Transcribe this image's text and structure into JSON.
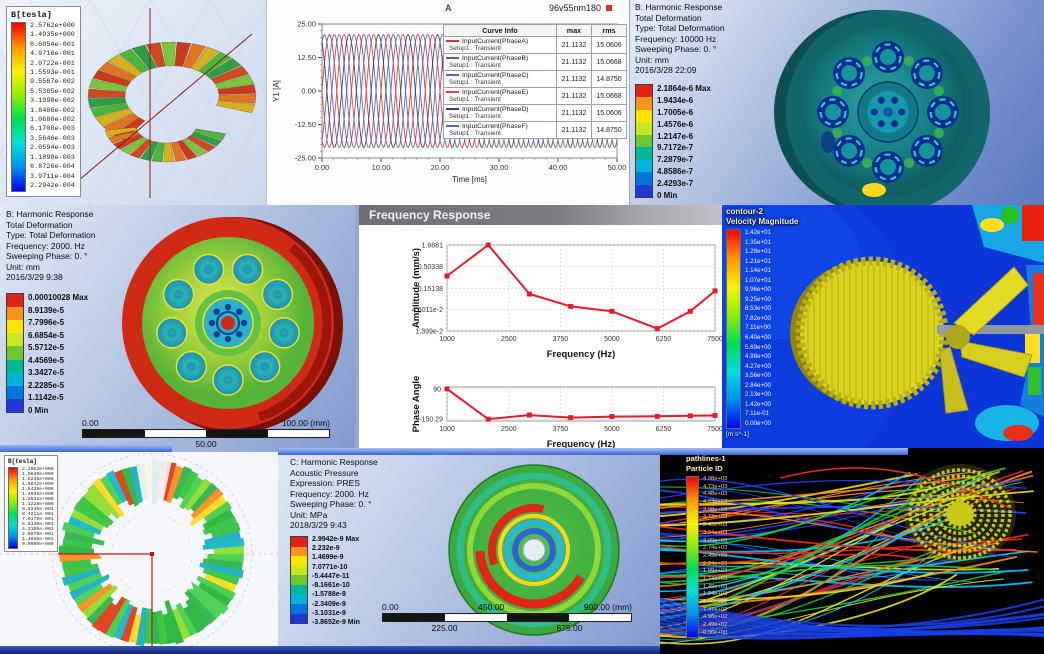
{
  "palette": {
    "ansys_bands": [
      "#e32117",
      "#f7941d",
      "#ffe500",
      "#c8e824",
      "#6cc832",
      "#00b894",
      "#00b4d8",
      "#0077d8",
      "#2038d8"
    ],
    "rainbow_stops": [
      "#ff0000",
      "#ff9500",
      "#fff000",
      "#8cf000",
      "#00e050",
      "#00e0d8",
      "#0090f0",
      "#0000f0"
    ],
    "stream_colors": [
      "#2040ff",
      "#00c8ff",
      "#28c828",
      "#e8e820",
      "#ff8c1a",
      "#ff2818"
    ]
  },
  "panels": {
    "flux3d": {
      "legend_title": "B[tesla]",
      "levels": [
        "2.5762e+000",
        "1.4935e+000",
        "8.6054e-001",
        "4.9716e-001",
        "2.0722e-001",
        "1.5593e-001",
        "9.5567e-002",
        "5.5385e-002",
        "3.1998e-002",
        "1.8486e-002",
        "1.0680e-002",
        "6.1708e-003",
        "3.5646e-003",
        "2.0594e-003",
        "1.1898e-003",
        "6.8726e-004",
        "3.9711e-004",
        "2.2942e-004"
      ]
    },
    "currents": {
      "title_left": "A",
      "title_right": "96v55nm180",
      "legend_headers": [
        "Curve Info",
        "max",
        "rms"
      ],
      "legend_rows": [
        {
          "name": "InputCurrent(PhaseA)",
          "setup": "Setup1 : Transient",
          "max": "21.1132",
          "rms": "15.0606",
          "color": "#cc3333"
        },
        {
          "name": "InputCurrent(PhaseB)",
          "setup": "Setup1 : Transient",
          "max": "21.1132",
          "rms": "15.0668",
          "color": "#606080"
        },
        {
          "name": "InputCurrent(PhaseC)",
          "setup": "Setup1 : Transient",
          "max": "21.1132",
          "rms": "14.8750",
          "color": "#6655cc"
        },
        {
          "name": "InputCurrent(PhaseE)",
          "setup": "Setup1 : Transient",
          "max": "21.1132",
          "rms": "15.0668",
          "color": "#e04444"
        },
        {
          "name": "InputCurrent(PhaseD)",
          "setup": "Setup1 : Transient",
          "max": "21.1132",
          "rms": "15.0606",
          "color": "#3a3a6e"
        },
        {
          "name": "InputCurrent(PhaseF)",
          "setup": "Setup1 : Transient",
          "max": "21.1132",
          "rms": "14.8750",
          "color": "#4a6ad0"
        }
      ]
    },
    "harm10000": {
      "lines": [
        "B: Harmonic Response",
        "Total Deformation",
        "Type: Total Deformation",
        "Frequency: 10000 Hz",
        "Sweeping Phase: 0. °",
        "Unit: mm",
        "2016/3/28 22:09"
      ],
      "levels": [
        "2.1864e-6 Max",
        "1.9434e-6",
        "1.7005e-6",
        "1.4576e-6",
        "1.2147e-6",
        "9.7172e-7",
        "7.2879e-7",
        "4.8586e-7",
        "2.4293e-7",
        "0 Min"
      ]
    },
    "harm2000": {
      "lines": [
        "B: Harmonic Response",
        "Total Deformation",
        "Type: Total Deformation",
        "Frequency: 2000. Hz",
        "Sweeping Phase: 0. °",
        "Unit: mm",
        "2016/3/29 9:38"
      ],
      "levels": [
        "0.00010028 Max",
        "8.9139e-5",
        "7.7996e-5",
        "6.6854e-5",
        "5.5712e-5",
        "4.4569e-5",
        "3.3427e-5",
        "2.2285e-5",
        "1.1142e-5",
        "0 Min"
      ],
      "ruler": {
        "start": "0.00",
        "mid": "50.00",
        "end": "100.00 (mm)"
      }
    },
    "freqresp": {
      "title": "Frequency Response"
    },
    "cfd": {
      "legend_line1": "contour-2",
      "legend_line2": "Velocity Magnitude",
      "unit": "[m s^-1]",
      "levels": [
        "1.42e+01",
        "1.35e+01",
        "1.28e+01",
        "1.21e+01",
        "1.14e+01",
        "1.07e+01",
        "9.96e+00",
        "9.25e+00",
        "8.53e+00",
        "7.82e+00",
        "7.11e+00",
        "6.40e+00",
        "5.69e+00",
        "4.98e+00",
        "4.27e+00",
        "3.56e+00",
        "2.84e+00",
        "2.13e+00",
        "1.42e+00",
        "7.11e-01",
        "0.00e+00"
      ]
    },
    "polar": {
      "legend_title": "B[tesla]",
      "levels": [
        "2.1053e+000",
        "1.9649e+000",
        "1.8246e+000",
        "1.6842e+000",
        "1.5439e+000",
        "1.4035e+000",
        "1.2632e+000",
        "1.1228e+000",
        "9.8246e-001",
        "8.4211e-001",
        "7.0175e-001",
        "5.6140e-001",
        "4.2105e-001",
        "2.8070e-001",
        "1.4035e-001",
        "0.0000e+000"
      ]
    },
    "acoustic": {
      "lines": [
        "C: Harmonic Response",
        "Acoustic Pressure",
        "Expression: PRES",
        "Frequency: 2000. Hz",
        "Sweeping Phase: 0. °",
        "Unit: MPa",
        "2018/3/29 9:43"
      ],
      "levels": [
        "2.9942e-9 Max",
        "2.232e-9",
        "1.4699e-9",
        "7.0771e-10",
        "-5.4447e-11",
        "-8.1661e-10",
        "-1.5788e-9",
        "-2.3409e-9",
        "-3.1031e-9",
        "-3.8652e-9 Min"
      ],
      "ruler_top": [
        "0.00",
        "450.00",
        "900.00 (mm)"
      ],
      "ruler_bottom": [
        "225.00",
        "675.00"
      ]
    },
    "pathlines": {
      "legend_line1": "pathlines-1",
      "legend_line2": "Particle ID",
      "levels": [
        "4.98e+03",
        "4.73e+03",
        "4.48e+03",
        "4.23e+03",
        "3.98e+03",
        "3.73e+03",
        "3.49e+03",
        "3.24e+03",
        "2.99e+03",
        "2.74e+03",
        "2.49e+03",
        "2.24e+03",
        "1.99e+03",
        "1.74e+03",
        "1.49e+03",
        "1.24e+03",
        "9.96e+02",
        "7.47e+02",
        "4.98e+02",
        "2.49e+02",
        "0.00e+00"
      ]
    }
  },
  "chart_data": [
    {
      "id": "input-currents",
      "type": "line",
      "title": "A",
      "subtitle": "96v55nm180",
      "xlabel": "Time [ms]",
      "ylabel": "Y1 [A]",
      "xlim": [
        0,
        50
      ],
      "ylim": [
        -25,
        25
      ],
      "xticks": [
        "0.00",
        "10.00",
        "20.00",
        "30.00",
        "40.00",
        "50.00"
      ],
      "yticks": [
        "25.00",
        "12.50",
        "0.00",
        "-12.50",
        "-25.00"
      ],
      "waveform": {
        "amplitude": 21.1132,
        "period_ms": 5
      },
      "series": [
        {
          "name": "InputCurrent(PhaseA)",
          "phase_deg": 0,
          "color": "#cc3333"
        },
        {
          "name": "InputCurrent(PhaseB)",
          "phase_deg": -60,
          "color": "#606080"
        },
        {
          "name": "InputCurrent(PhaseC)",
          "phase_deg": -120,
          "color": "#6655cc"
        },
        {
          "name": "InputCurrent(PhaseE)",
          "phase_deg": -180,
          "color": "#e04444"
        },
        {
          "name": "InputCurrent(PhaseD)",
          "phase_deg": -240,
          "color": "#3a3a6e"
        },
        {
          "name": "InputCurrent(PhaseF)",
          "phase_deg": -300,
          "color": "#4a6ad0"
        }
      ]
    },
    {
      "id": "frequency-response-amplitude",
      "type": "line",
      "yscale": "log",
      "title": "Frequency Response",
      "ylabel": "Amplitude (mm/s)",
      "xlabel": "Frequency (Hz)",
      "yticks": [
        "1.6881",
        "0.50338",
        "0.15138",
        "4.6011e-2",
        "1.399e-2"
      ],
      "xticks": [
        "1000",
        "2500",
        "3750",
        "5000",
        "6250",
        "7500"
      ],
      "xlim": [
        1000,
        7500
      ],
      "x": [
        1000,
        2000,
        3000,
        4000,
        5000,
        6100,
        6900,
        7500
      ],
      "y": [
        0.3,
        1.6881,
        0.11,
        0.055,
        0.042,
        0.016,
        0.042,
        0.13
      ],
      "color": "#e8192c"
    },
    {
      "id": "frequency-response-phase",
      "type": "line",
      "ylabel": "Phase Angle",
      "xlabel": "Frequency (Hz)",
      "yticks": [
        "90.",
        "-150.29"
      ],
      "xticks": [
        "1000",
        "2500",
        "3750",
        "5000",
        "6250",
        "7500"
      ],
      "xlim": [
        1000,
        7500
      ],
      "ylim": [
        -165,
        105
      ],
      "x": [
        1000,
        2000,
        3000,
        4000,
        5000,
        6100,
        6900,
        7500
      ],
      "y": [
        90,
        -150.29,
        -118,
        -138,
        -130,
        -128,
        -124,
        -121
      ],
      "color": "#e8192c"
    }
  ]
}
